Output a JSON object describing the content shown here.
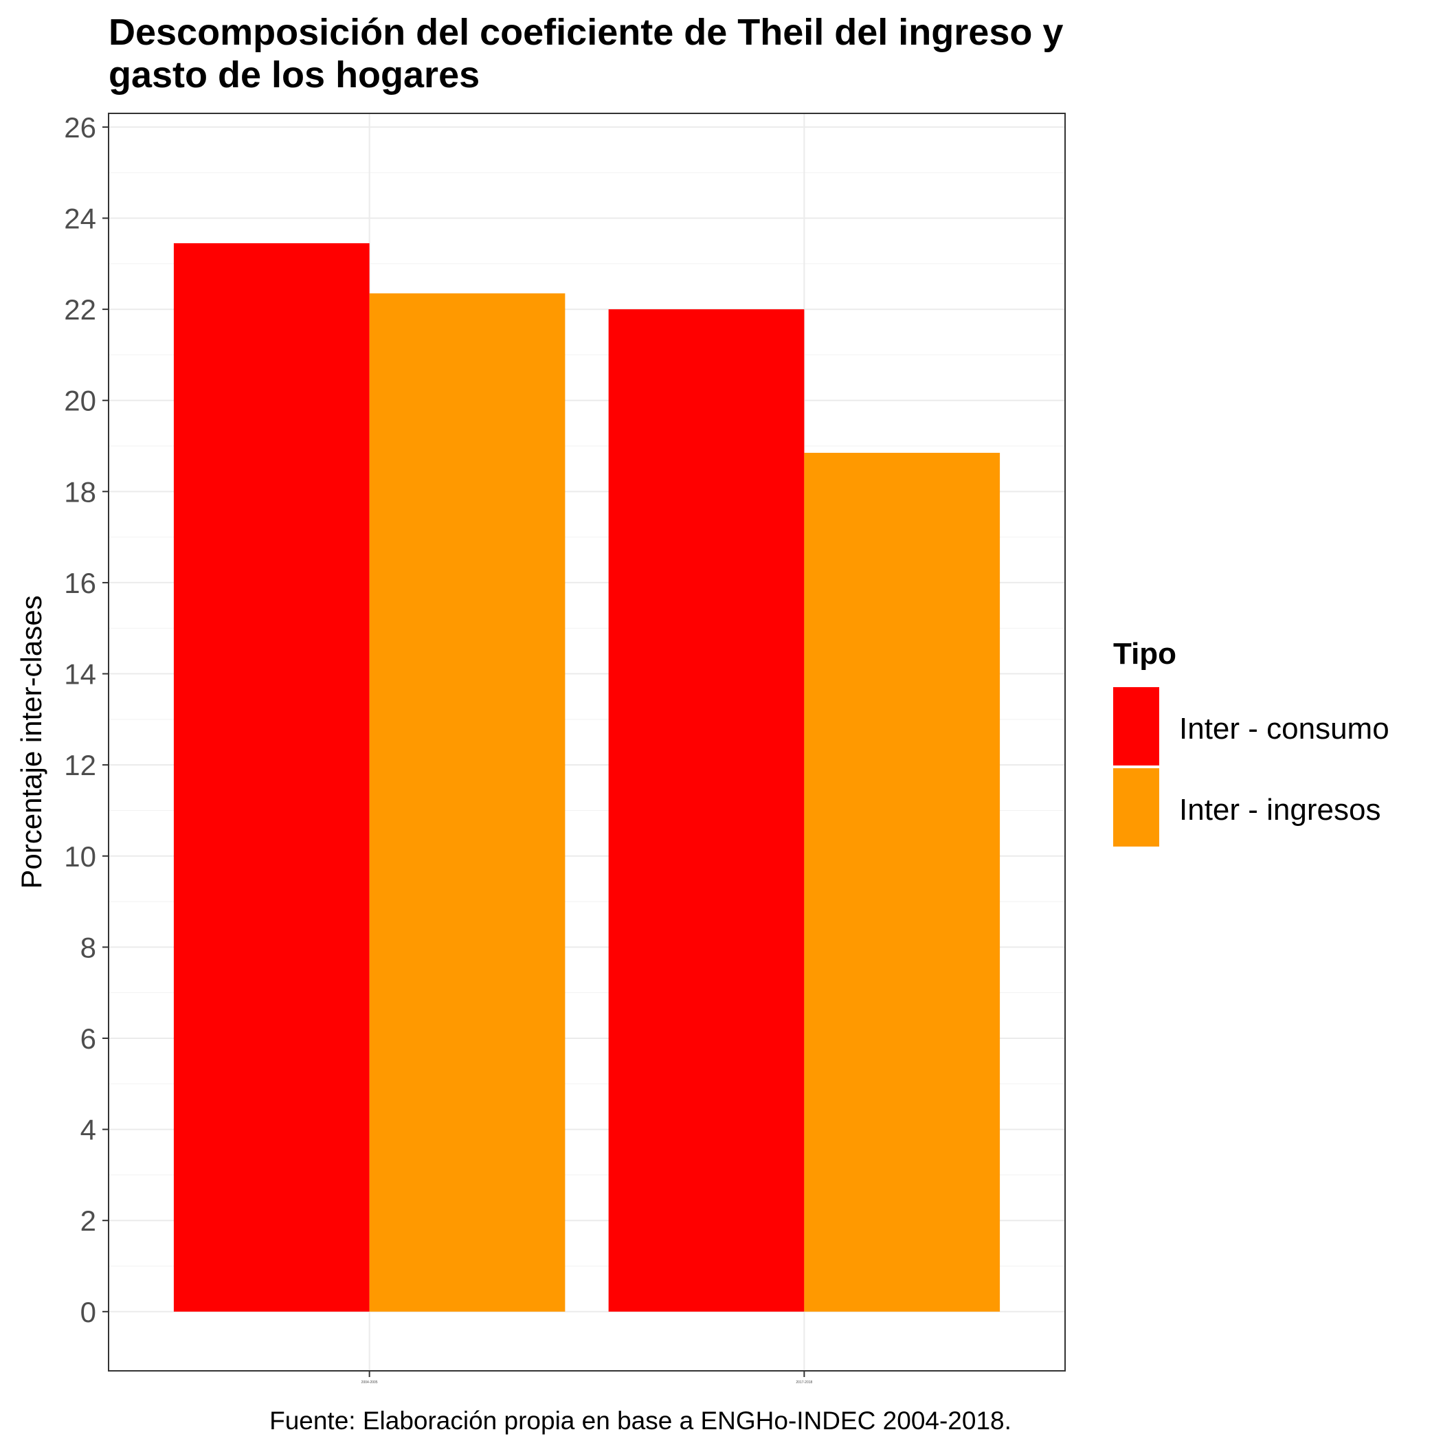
{
  "chart_data": {
    "type": "bar",
    "title_lines": [
      "Descomposición del coeficiente de Theil del ingreso y",
      "gasto de los hogares"
    ],
    "xlabel": "",
    "ylabel": "Porcentaje inter-clases",
    "categories": [
      "2004-2005",
      "2017-2018"
    ],
    "series": [
      {
        "name": "Inter - consumo",
        "color": "#ff0000",
        "values": [
          23.45,
          22.0
        ]
      },
      {
        "name": "Inter - ingresos",
        "color": "#ff9900",
        "values": [
          22.35,
          18.85
        ]
      }
    ],
    "ylim": [
      -1.3,
      26.3
    ],
    "yticks": [
      0,
      2,
      4,
      6,
      8,
      10,
      12,
      14,
      16,
      18,
      20,
      22,
      24,
      26
    ],
    "grid": true,
    "legend": {
      "title": "Tipo",
      "placement": "right"
    },
    "caption": "Fuente: Elaboración propia en base a ENGHo-INDEC 2004-2018."
  }
}
